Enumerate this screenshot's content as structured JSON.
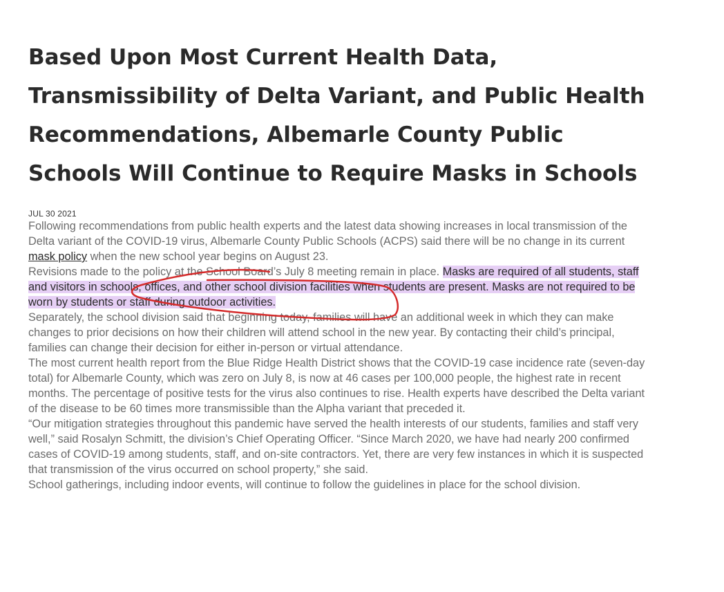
{
  "article": {
    "headline": "Based Upon Most Current Health Data, Transmissibility of Delta Variant, and Public Health Recommendations, Albemarle County Public Schools Will Continue to Require Masks in Schools",
    "date": "JUL 30 2021",
    "p1_before": "Following recommendations from public health experts and the latest data showing increases in local transmission of the Delta variant of the COVID-19 virus, Albemarle County Public Schools (ACPS) said there will be no change in its current ",
    "p1_link": "mask policy",
    "p1_after": " when the new school year begins on August 23.",
    "p2_plain": "Revisions made to the policy at the School Board’s July 8 meeting remain in place. ",
    "p2_highlight": "Masks are required of all students, staff and visitors in schools, offices, and other school division facilities when students are present. Masks are not required to be worn by students or staff during outdoor activities.",
    "p3": "Separately, the school division said that beginning today, families will have an additional week in which they can make changes to prior decisions on how their children will attend school in the new year. By contacting their child’s principal, families can change their decision for either in-person or virtual attendance.",
    "p4": "The most current health report from the Blue Ridge Health District shows that the COVID-19 case incidence rate (seven-day total) for Albemarle County, which was zero on July 8, is now at 46 cases per 100,000 people, the highest rate in recent months. The percentage of positive tests for the virus also continues to rise. Health experts have described the Delta variant of the disease to be 60 times more transmissible than the Alpha variant that preceded it.",
    "p5": "“Our mitigation strategies throughout this pandemic have served the health interests of our students, families and staff very well,” said Rosalyn Schmitt, the division’s Chief Operating Officer. “Since March 2020, we have had nearly 200 confirmed cases of COVID-19 among students, staff, and on-site contractors. Yet, there are very few instances in which it is suspected that transmission of the virus occurred on school property,” she said.",
    "p6": "School gatherings, including indoor events, will continue to follow the guidelines in place for the school division."
  },
  "colors": {
    "highlight": "#e6cff5",
    "annotation_ink": "#d42a2a",
    "headline": "#2a2a2a",
    "body_text": "#6b6b6b"
  }
}
